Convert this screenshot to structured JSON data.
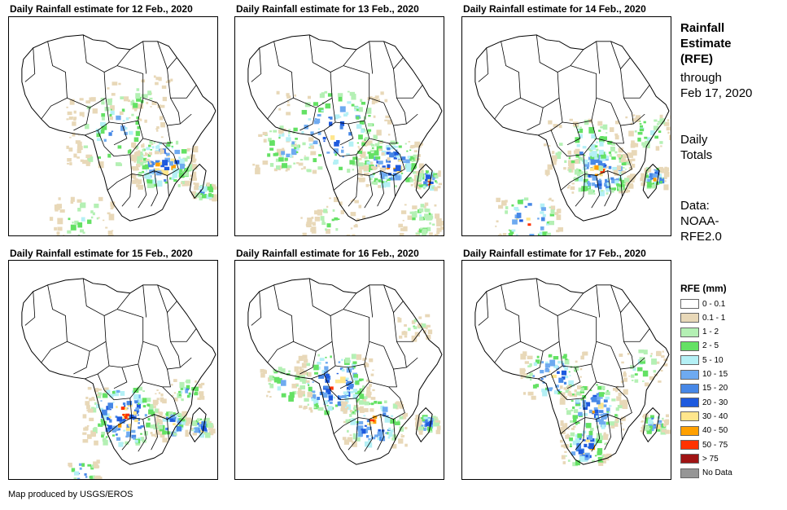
{
  "panels": [
    {
      "title": "Daily Rainfall estimate for 12 Feb., 2020"
    },
    {
      "title": "Daily Rainfall estimate for 13 Feb., 2020"
    },
    {
      "title": "Daily Rainfall estimate for 14 Feb., 2020"
    },
    {
      "title": "Daily Rainfall estimate for 15 Feb., 2020"
    },
    {
      "title": "Daily Rainfall estimate for 16 Feb., 2020"
    },
    {
      "title": "Daily Rainfall estimate for 17 Feb., 2020"
    }
  ],
  "sidebar": {
    "title_line1": "Rainfall",
    "title_line2": "Estimate",
    "title_line3": "(RFE)",
    "through_line1": "through",
    "through_line2": "Feb 17, 2020",
    "totals_line1": "Daily",
    "totals_line2": "Totals",
    "data_line1": "Data:",
    "data_line2": "NOAA-",
    "data_line3": "RFE2.0"
  },
  "legend": {
    "title": "RFE (mm)",
    "items": [
      {
        "label": "0 - 0.1",
        "color": "#ffffff"
      },
      {
        "label": "0.1 - 1",
        "color": "#e8d8b8"
      },
      {
        "label": "1 - 2",
        "color": "#b4f0b4"
      },
      {
        "label": "2 - 5",
        "color": "#64e164"
      },
      {
        "label": "5 - 10",
        "color": "#b4f0f5"
      },
      {
        "label": "10 - 15",
        "color": "#6eaaf0"
      },
      {
        "label": "15 - 20",
        "color": "#4687e6"
      },
      {
        "label": "20 - 30",
        "color": "#1e5ade"
      },
      {
        "label": "30 - 40",
        "color": "#ffe68c"
      },
      {
        "label": "40 - 50",
        "color": "#ffa000"
      },
      {
        "label": "50 - 75",
        "color": "#ff3200"
      },
      {
        "label": "> 75",
        "color": "#a01414"
      },
      {
        "label": "No Data",
        "color": "#969696"
      }
    ]
  },
  "credit": "Map produced by USGS/EROS"
}
